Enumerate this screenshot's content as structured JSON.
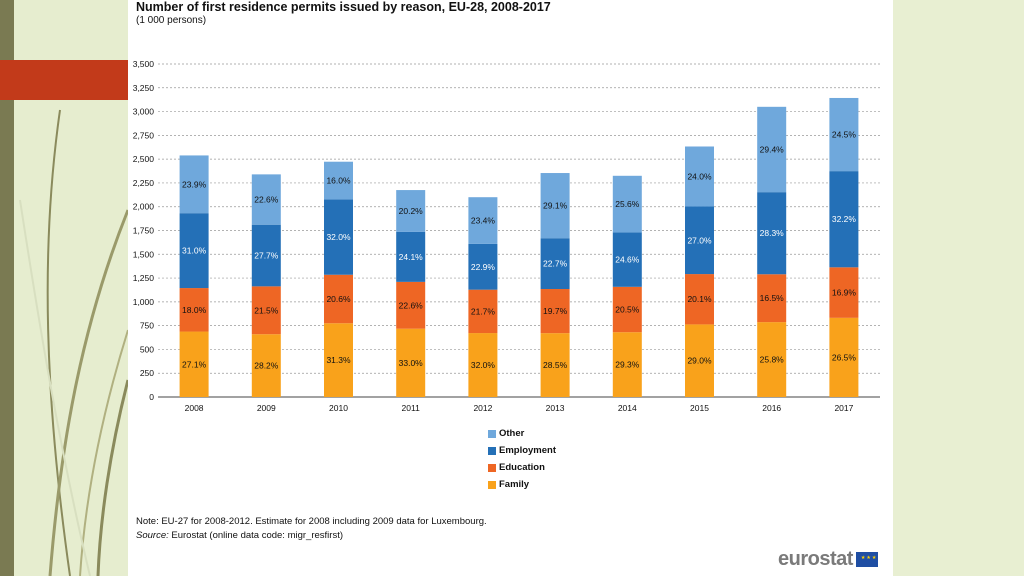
{
  "title": "Number of first residence permits issued by reason, EU-28, 2008-2017",
  "subtitle": "(1 000 persons)",
  "note": "Note: EU-27 for 2008-2012. Estimate for 2008 including 2009 data for Luxembourg.",
  "source_label": "Source:",
  "source_text": " Eurostat (online data code: migr_resfirst)",
  "logo_text": "eurostat",
  "colors": {
    "Family": "#f9a21b",
    "Education": "#ee6624",
    "Employment": "#2470b7",
    "Other": "#6fa8dc"
  },
  "chart_data": {
    "type": "bar",
    "stacked": true,
    "categories": [
      "2008",
      "2009",
      "2010",
      "2011",
      "2012",
      "2013",
      "2014",
      "2015",
      "2016",
      "2017"
    ],
    "ylim": [
      0,
      3500
    ],
    "yticks": [
      "0",
      "250",
      "500",
      "750",
      "1,000",
      "1,250",
      "1,500",
      "1,750",
      "2,000",
      "2,250",
      "2,500",
      "2,750",
      "3,000",
      "3,250",
      "3,500"
    ],
    "ytick_values": [
      0,
      250,
      500,
      750,
      1000,
      1250,
      1500,
      1750,
      2000,
      2250,
      2500,
      2750,
      3000,
      3250,
      3500
    ],
    "grid": true,
    "legend_position": "bottom",
    "series": [
      {
        "name": "Family",
        "values": [
          688,
          660,
          775,
          718,
          672,
          671,
          681,
          763,
          787,
          832
        ],
        "labels": [
          "27.1%",
          "28.2%",
          "31.3%",
          "33.0%",
          "32.0%",
          "28.5%",
          "29.3%",
          "29.0%",
          "25.8%",
          "26.5%"
        ]
      },
      {
        "name": "Education",
        "values": [
          457,
          503,
          510,
          492,
          456,
          464,
          477,
          529,
          503,
          531
        ],
        "labels": [
          "18.0%",
          "21.5%",
          "20.6%",
          "22.6%",
          "21.7%",
          "19.7%",
          "20.5%",
          "20.1%",
          "16.5%",
          "16.9%"
        ]
      },
      {
        "name": "Employment",
        "values": [
          787,
          648,
          792,
          525,
          481,
          534,
          572,
          710,
          863,
          1011
        ],
        "labels": [
          "31.0%",
          "27.7%",
          "32.0%",
          "24.1%",
          "22.9%",
          "22.7%",
          "24.6%",
          "27.0%",
          "28.3%",
          "32.2%"
        ]
      },
      {
        "name": "Other",
        "values": [
          607,
          529,
          396,
          440,
          491,
          685,
          595,
          631,
          897,
          769
        ],
        "labels": [
          "23.9%",
          "22.6%",
          "16.0%",
          "20.2%",
          "23.4%",
          "29.1%",
          "25.6%",
          "24.0%",
          "29.4%",
          "24.5%"
        ]
      }
    ],
    "legend_order": [
      "Other",
      "Employment",
      "Education",
      "Family"
    ]
  }
}
